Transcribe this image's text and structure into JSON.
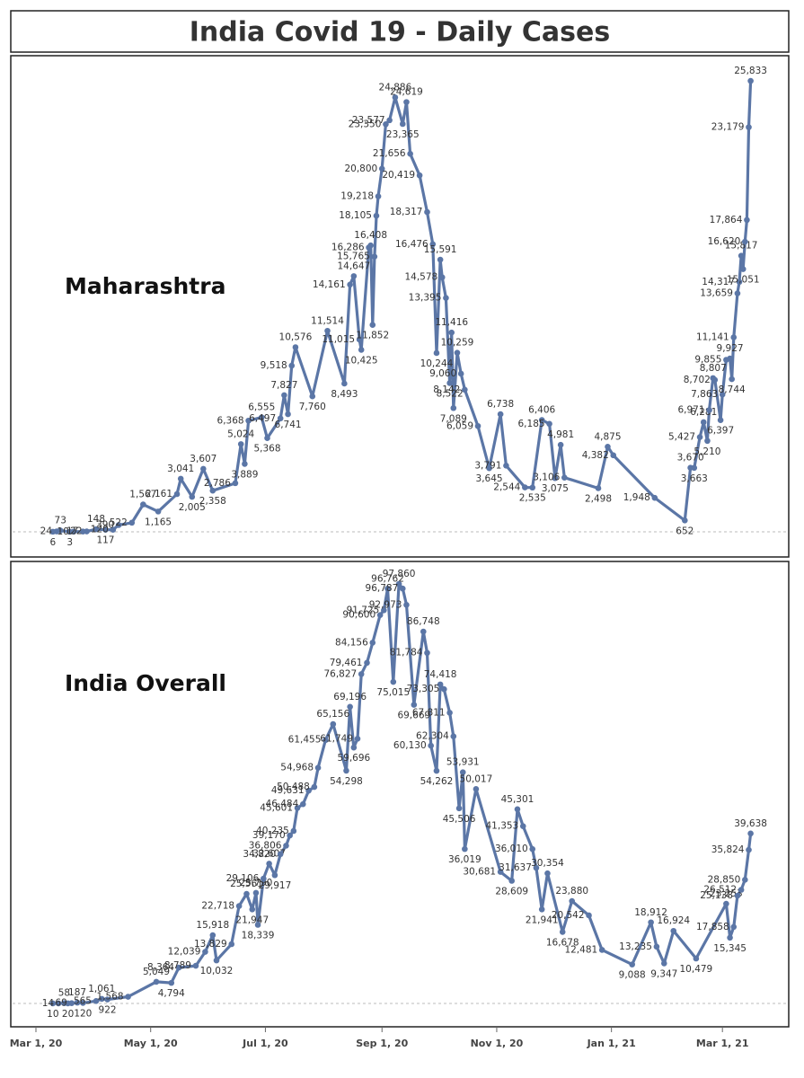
{
  "title": "India Covid 19 - Daily Cases",
  "chart_data": [
    {
      "type": "line",
      "title": "Maharashtra",
      "color": "#5b76a6",
      "xlim": [
        "2020-03-01",
        "2021-03-31"
      ],
      "ylim": [
        0,
        27250
      ],
      "x": [
        "2020-03-10",
        "2020-03-12",
        "2020-03-14",
        "2020-03-19",
        "2020-03-21",
        "2020-03-26",
        "2020-03-28",
        "2020-04-02",
        "2020-04-07",
        "2020-04-11",
        "2020-04-14",
        "2020-04-21",
        "2020-04-27",
        "2020-05-05",
        "2020-05-15",
        "2020-05-17",
        "2020-05-23",
        "2020-05-29",
        "2020-06-03",
        "2020-06-15",
        "2020-06-18",
        "2020-06-20",
        "2020-06-22",
        "2020-06-29",
        "2020-07-02",
        "2020-07-09",
        "2020-07-11",
        "2020-07-13",
        "2020-07-15",
        "2020-07-17",
        "2020-07-26",
        "2020-08-03",
        "2020-08-12",
        "2020-08-15",
        "2020-08-17",
        "2020-08-20",
        "2020-08-21",
        "2020-08-25",
        "2020-08-26",
        "2020-08-27",
        "2020-08-28",
        "2020-08-29",
        "2020-08-30",
        "2020-09-01",
        "2020-09-03",
        "2020-09-05",
        "2020-09-08",
        "2020-09-12",
        "2020-09-14",
        "2020-09-16",
        "2020-09-21",
        "2020-09-25",
        "2020-09-28",
        "2020-09-30",
        "2020-10-02",
        "2020-10-03",
        "2020-10-05",
        "2020-10-07",
        "2020-10-08",
        "2020-10-09",
        "2020-10-11",
        "2020-10-13",
        "2020-10-15",
        "2020-10-22",
        "2020-10-28",
        "2020-11-03",
        "2020-11-06",
        "2020-11-16",
        "2020-11-20",
        "2020-11-25",
        "2020-11-29",
        "2020-12-02",
        "2020-12-05",
        "2020-12-07",
        "2020-12-25",
        "2020-12-30",
        "2021-01-02",
        "2021-01-24",
        "2021-02-09",
        "2021-02-12",
        "2021-02-14",
        "2021-02-17",
        "2021-02-19",
        "2021-02-21",
        "2021-02-22",
        "2021-02-24",
        "2021-02-25",
        "2021-02-28",
        "2021-03-01",
        "2021-03-03",
        "2021-03-05",
        "2021-03-06",
        "2021-03-07",
        "2021-03-09",
        "2021-03-10",
        "2021-03-11",
        "2021-03-12",
        "2021-03-13",
        "2021-03-14",
        "2021-03-15",
        "2021-03-16"
      ],
      "values": [
        6,
        24,
        73,
        3,
        10,
        17,
        22,
        148,
        117,
        120,
        390,
        522,
        1567,
        1165,
        2161,
        3041,
        2005,
        3607,
        2358,
        2786,
        5024,
        3889,
        6368,
        6555,
        5368,
        6497,
        7827,
        6741,
        9518,
        10576,
        7760,
        11514,
        8493,
        14161,
        14647,
        11015,
        10425,
        16286,
        16408,
        11852,
        15765,
        18105,
        19218,
        20800,
        23350,
        23577,
        24886,
        23365,
        24619,
        21656,
        20419,
        18317,
        16476,
        10244,
        15591,
        14578,
        13395,
        8522,
        11416,
        7089,
        10259,
        9060,
        8142,
        6059,
        3645,
        6738,
        3791,
        2544,
        2535,
        6406,
        6185,
        3075,
        4981,
        3106,
        2498,
        4875,
        4382,
        1948,
        652,
        3670,
        3663,
        5427,
        6281,
        5210,
        6971,
        8807,
        8702,
        6397,
        7863,
        9855,
        9927,
        8744,
        11141,
        13659,
        14317,
        15817,
        15051,
        16620,
        17864,
        23179,
        25833
      ],
      "value_labels": [
        "6",
        "24",
        "73",
        "3",
        "10",
        "17",
        "22",
        "148",
        "117",
        "120",
        "390",
        "522",
        "1,567",
        "1,165",
        "2,161",
        "3,041",
        "2,005",
        "3,607",
        "2,358",
        "2,786",
        "5,024",
        "3,889",
        "6,368",
        "6,555",
        "5,368",
        "6,497",
        "7,827",
        "6,741",
        "9,518",
        "10,576",
        "7,760",
        "11,514",
        "8,493",
        "14,161",
        "14,647",
        "11,015",
        "10,425",
        "16,286",
        "16,408",
        "11,852",
        "15,765",
        "18,105",
        "19,218",
        "20,800",
        "23,350",
        "23,577",
        "24,886",
        "23,365",
        "24,619",
        "21,656",
        "20,419",
        "18,317",
        "16,476",
        "10,244",
        "15,591",
        "14,578",
        "13,395",
        "8,522",
        "11,416",
        "7,089",
        "10,259",
        "9,060",
        "8,142",
        "6,059",
        "3,645",
        "6,738",
        "3,791",
        "2,544",
        "2,535",
        "6,406",
        "6,185",
        "3,075",
        "4,981",
        "3,106",
        "2,498",
        "4,875",
        "4,382",
        "1,948",
        "652",
        "3,670",
        "3,663",
        "5,427",
        "6,281",
        "5,210",
        "6,971",
        "8,807",
        "8,702",
        "6,397",
        "7,863",
        "9,855",
        "9,927",
        "8,744",
        "11,141",
        "13,659",
        "14,317",
        "15,817",
        "15,051",
        "16,620",
        "17,864",
        "23,179",
        "25,833"
      ]
    },
    {
      "type": "line",
      "title": "India Overall",
      "color": "#5b76a6",
      "xlim": [
        "2020-03-01",
        "2021-03-31"
      ],
      "ylim": [
        0,
        103000
      ],
      "xticks": [
        {
          "value": "2020-03-01",
          "label": "Mar 1, 20"
        },
        {
          "value": "2020-05-01",
          "label": "May 1, 20"
        },
        {
          "value": "2020-07-01",
          "label": "Jul 1, 20"
        },
        {
          "value": "2020-09-01",
          "label": "Sep 1, 20"
        },
        {
          "value": "2020-11-01",
          "label": "Nov 1, 20"
        },
        {
          "value": "2021-01-01",
          "label": "Jan 1, 21"
        },
        {
          "value": "2021-03-01",
          "label": "Mar 1, 21"
        }
      ],
      "x": [
        "2020-03-10",
        "2020-03-13",
        "2020-03-16",
        "2020-03-18",
        "2020-03-20",
        "2020-03-23",
        "2020-03-26",
        "2020-04-02",
        "2020-04-05",
        "2020-04-08",
        "2020-04-19",
        "2020-05-04",
        "2020-05-12",
        "2020-05-16",
        "2020-05-25",
        "2020-05-30",
        "2020-06-03",
        "2020-06-05",
        "2020-06-13",
        "2020-06-17",
        "2020-06-21",
        "2020-06-24",
        "2020-06-26",
        "2020-06-27",
        "2020-06-30",
        "2020-07-03",
        "2020-07-06",
        "2020-07-09",
        "2020-07-12",
        "2020-07-14",
        "2020-07-16",
        "2020-07-18",
        "2020-07-21",
        "2020-07-24",
        "2020-07-27",
        "2020-07-29",
        "2020-08-02",
        "2020-08-06",
        "2020-08-13",
        "2020-08-15",
        "2020-08-17",
        "2020-08-19",
        "2020-08-21",
        "2020-08-24",
        "2020-08-27",
        "2020-08-31",
        "2020-09-02",
        "2020-09-04",
        "2020-09-07",
        "2020-09-10",
        "2020-09-12",
        "2020-09-14",
        "2020-09-18",
        "2020-09-23",
        "2020-09-25",
        "2020-09-27",
        "2020-09-30",
        "2020-10-02",
        "2020-10-04",
        "2020-10-07",
        "2020-10-09",
        "2020-10-12",
        "2020-10-14",
        "2020-10-15",
        "2020-10-21",
        "2020-11-03",
        "2020-11-09",
        "2020-11-12",
        "2020-11-15",
        "2020-11-20",
        "2020-11-22",
        "2020-11-25",
        "2020-11-28",
        "2020-12-06",
        "2020-12-11",
        "2020-12-20",
        "2020-12-27",
        "2021-01-12",
        "2021-01-22",
        "2021-01-25",
        "2021-01-29",
        "2021-02-03",
        "2021-02-15",
        "2021-03-03",
        "2021-03-05",
        "2021-03-07",
        "2021-03-09",
        "2021-03-11",
        "2021-03-13",
        "2021-03-15",
        "2021-03-16"
      ],
      "values": [
        10,
        14,
        58,
        20,
        69,
        187,
        120,
        565,
        1061,
        922,
        1568,
        5049,
        4794,
        8364,
        8789,
        12039,
        15918,
        10032,
        13829,
        22718,
        25561,
        21947,
        25790,
        18339,
        29106,
        32607,
        29917,
        34820,
        36806,
        39170,
        40235,
        45601,
        46484,
        49631,
        50488,
        54968,
        61455,
        65156,
        54298,
        69196,
        59696,
        61749,
        76827,
        79461,
        84156,
        90600,
        91725,
        96762,
        75015,
        97860,
        96787,
        92973,
        69669,
        86748,
        81784,
        60130,
        54262,
        74418,
        73305,
        67811,
        62304,
        45506,
        53931,
        36019,
        50017,
        30681,
        28609,
        45301,
        41353,
        36010,
        31637,
        21941,
        30354,
        16678,
        23880,
        20542,
        12481,
        9088,
        18912,
        13235,
        9347,
        16924,
        10479,
        23253,
        15345,
        17858,
        25138,
        26512,
        28850,
        35824,
        39638
      ],
      "value_labels": [
        "10",
        "14",
        "58",
        "20",
        "69",
        "187",
        "120",
        "565",
        "1,061",
        "922",
        "1,568",
        "5,049",
        "4,794",
        "8,364",
        "8,789",
        "12,039",
        "15,918",
        "10,032",
        "13,829",
        "22,718",
        "25,561",
        "21,947",
        "25,790",
        "18,339",
        "29,106",
        "32,607",
        "29,917",
        "34,820",
        "36,806",
        "39,170",
        "40,235",
        "45,601",
        "46,484",
        "49,631",
        "50,488",
        "54,968",
        "61,455",
        "65,156",
        "54,298",
        "69,196",
        "59,696",
        "61,749",
        "76,827",
        "79,461",
        "84,156",
        "90,600",
        "91,725",
        "96,762",
        "75,015",
        "97,860",
        "96,787",
        "92,973",
        "69,669",
        "86,748",
        "81,784",
        "60,130",
        "54,262",
        "74,418",
        "73,305",
        "67,811",
        "62,304",
        "45,506",
        "53,931",
        "36,019",
        "50,017",
        "30,681",
        "28,609",
        "45,301",
        "41,353",
        "36,010",
        "31,637",
        "21,941",
        "30,354",
        "16,678",
        "23,880",
        "20,542",
        "12,481",
        "9,088",
        "18,912",
        "13,235",
        "9,347",
        "16,924",
        "10,479",
        "23,253",
        "15,345",
        "17,858",
        "25,138",
        "26,512",
        "28,850",
        "35,824",
        "39,638"
      ]
    }
  ]
}
